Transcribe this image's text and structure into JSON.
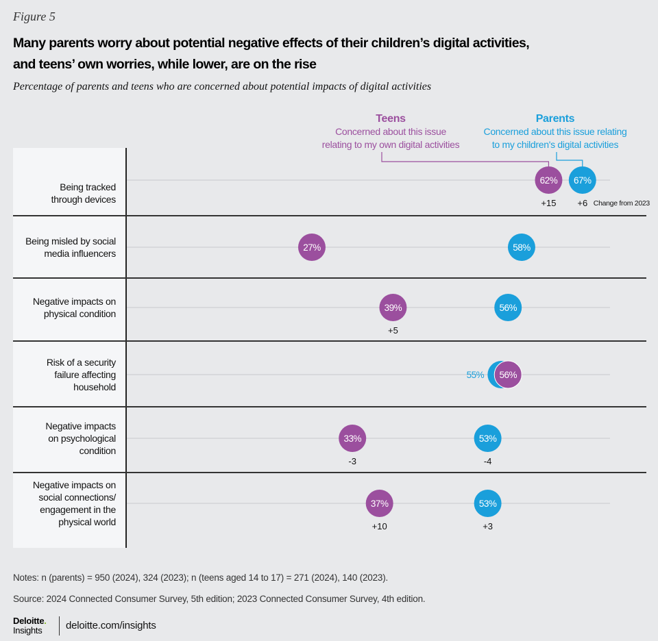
{
  "figure_label": "Figure 5",
  "title_line1": "Many parents worry about potential negative effects of their children’s digital activities,",
  "title_line2": "and teens’ own worries, while lower, are on the rise",
  "subtitle": "Percentage of parents and teens who are concerned about potential impacts of digital activities",
  "colors": {
    "teens": "#9b4f9e",
    "parents": "#1a9fdb"
  },
  "legend": {
    "teens": {
      "head": "Teens",
      "line1": "Concerned about this issue",
      "line2": "relating to my own digital activities"
    },
    "parents": {
      "head": "Parents",
      "line1": "Concerned about this issue relating",
      "line2": "to my children's digital activities"
    },
    "change_note": "Change from 2023"
  },
  "chart_data": {
    "type": "scatter",
    "subtype": "dot-plot",
    "title": "Many parents worry about potential negative effects of their children’s digital activities, and teens’ own worries, while lower, are on the rise",
    "subtitle": "Percentage of parents and teens who are concerned about potential impacts of digital activities",
    "unit": "%",
    "xlim": [
      0,
      75
    ],
    "grid": true,
    "categories": [
      [
        "Being tracked",
        "through devices"
      ],
      [
        "Being misled by social",
        "media influencers"
      ],
      [
        "Negative impacts on",
        "physical condition"
      ],
      [
        "Risk of a security",
        "failure affecting",
        "household"
      ],
      [
        "Negative impacts",
        "on psychological",
        "condition"
      ],
      [
        "Negative impacts on",
        "social connections/",
        "engagement in the",
        "physical world"
      ]
    ],
    "series": [
      {
        "name": "Teens",
        "values": [
          62,
          27,
          39,
          56,
          33,
          37
        ],
        "labels": [
          "62%",
          "27%",
          "39%",
          "56%",
          "33%",
          "37%"
        ],
        "change_from_2023": [
          "+15",
          "",
          "+5",
          "",
          "-3",
          "+10"
        ]
      },
      {
        "name": "Parents",
        "values": [
          67,
          58,
          56,
          55,
          53,
          53
        ],
        "labels": [
          "67%",
          "58%",
          "56%",
          "55%",
          "53%",
          "53%"
        ],
        "change_from_2023": [
          "+6",
          "",
          "",
          "",
          "-4",
          "+3"
        ]
      }
    ]
  },
  "notes": "Notes: n (parents) = 950 (2024), 324 (2023); n (teens aged 14 to 17) = 271 (2024), 140 (2023).",
  "source": "Source: 2024 Connected Consumer Survey, 5th edition; 2023 Connected Consumer Survey, 4th edition.",
  "footer": {
    "brand": "Deloitte",
    "brand_dot": ".",
    "brand_sub": "Insights",
    "url": "deloitte.com/insights"
  }
}
